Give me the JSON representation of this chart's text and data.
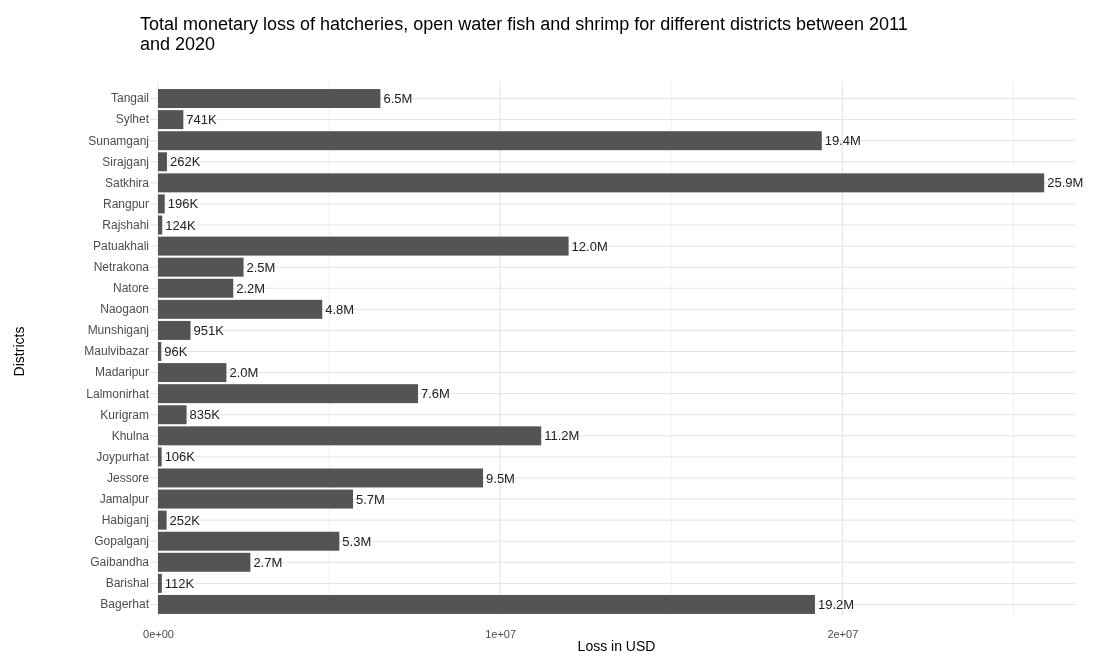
{
  "chart_data": {
    "type": "bar",
    "orientation": "horizontal",
    "title": "Total monetary loss of hatcheries, open water fish and shrimp for different districts between 2011 and 2020",
    "xlabel": "Loss in USD",
    "ylabel": "Districts",
    "categories": [
      "Tangail",
      "Sylhet",
      "Sunamganj",
      "Sirajganj",
      "Satkhira",
      "Rangpur",
      "Rajshahi",
      "Patuakhali",
      "Netrakona",
      "Natore",
      "Naogaon",
      "Munshiganj",
      "Maulvibazar",
      "Madaripur",
      "Lalmonirhat",
      "Kurigram",
      "Khulna",
      "Joypurhat",
      "Jessore",
      "Jamalpur",
      "Habiganj",
      "Gopalganj",
      "Gaibandha",
      "Barishal",
      "Bagerhat"
    ],
    "values": [
      6500000,
      741000,
      19400000,
      262000,
      25900000,
      196000,
      124000,
      12000000,
      2500000,
      2200000,
      4800000,
      951000,
      96000,
      2000000,
      7600000,
      835000,
      11200000,
      106000,
      9500000,
      5700000,
      252000,
      5300000,
      2700000,
      112000,
      19200000
    ],
    "value_labels": [
      "6.5M",
      "741K",
      "19.4M",
      "262K",
      "25.9M",
      "196K",
      "124K",
      "12.0M",
      "2.5M",
      "2.2M",
      "4.8M",
      "951K",
      "96K",
      "2.0M",
      "7.6M",
      "835K",
      "11.2M",
      "106K",
      "9.5M",
      "5.7M",
      "252K",
      "5.3M",
      "2.7M",
      "112K",
      "19.2M"
    ],
    "color": "#545454",
    "xlim": [
      0,
      26800000
    ],
    "xticks": [
      {
        "value": 0,
        "label": "0e+00"
      },
      {
        "value": 5000000,
        "label": null
      },
      {
        "value": 10000000,
        "label": "1e+07"
      },
      {
        "value": 15000000,
        "label": null
      },
      {
        "value": 20000000,
        "label": "2e+07"
      },
      {
        "value": 25000000,
        "label": null
      }
    ],
    "grid": true
  }
}
